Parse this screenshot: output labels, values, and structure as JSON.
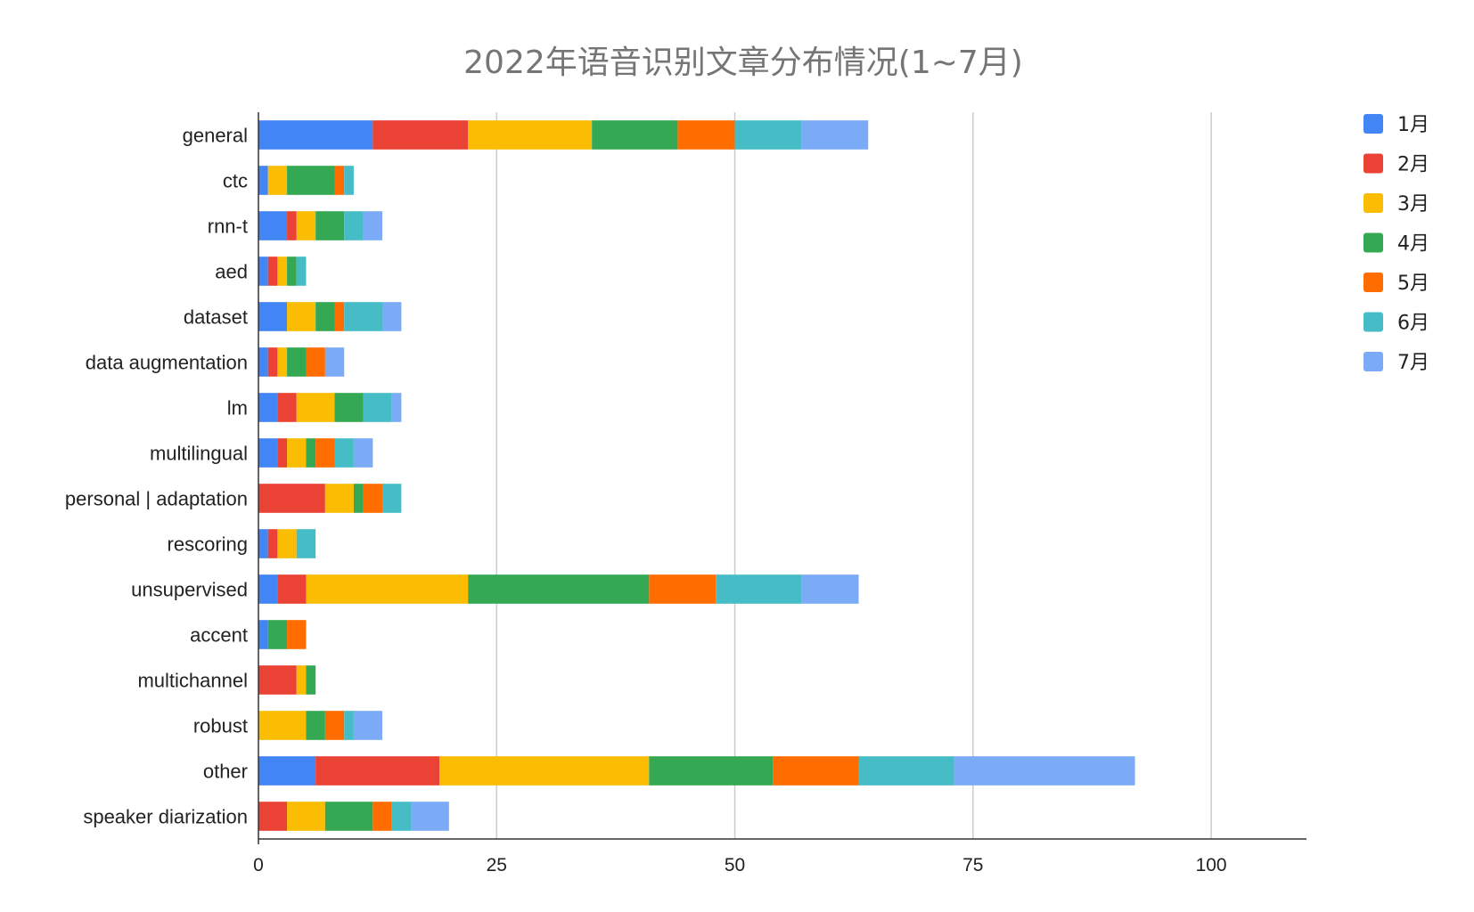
{
  "chart_data": {
    "type": "bar",
    "orientation": "horizontal",
    "stacked": true,
    "title": "2022年语音识别文章分布情况(1~7月)",
    "xlim": [
      0,
      110
    ],
    "xticks": [
      0,
      25,
      50,
      75,
      100
    ],
    "xtick_labels": [
      "0",
      "25",
      "50",
      "75",
      "100"
    ],
    "grid": true,
    "legend_position": "right",
    "categories": [
      "general",
      "ctc",
      "rnn-t",
      "aed",
      "dataset",
      "data augmentation",
      "lm",
      "multilingual",
      "personal | adaptation",
      "rescoring",
      "unsupervised",
      "accent",
      "multichannel",
      "robust",
      "other",
      "speaker diarization"
    ],
    "series": [
      {
        "name": "1月",
        "color": "#4285F4",
        "values": [
          12,
          1,
          3,
          1,
          3,
          1,
          2,
          2,
          0,
          1,
          2,
          1,
          0,
          0,
          6,
          0
        ]
      },
      {
        "name": "2月",
        "color": "#EA4335",
        "values": [
          10,
          0,
          1,
          1,
          0,
          1,
          2,
          1,
          7,
          1,
          3,
          0,
          4,
          0,
          13,
          3
        ]
      },
      {
        "name": "3月",
        "color": "#FBBC04",
        "values": [
          13,
          2,
          2,
          1,
          3,
          1,
          4,
          2,
          3,
          2,
          17,
          0,
          1,
          5,
          22,
          4
        ]
      },
      {
        "name": "4月",
        "color": "#34A853",
        "values": [
          9,
          5,
          3,
          1,
          2,
          2,
          3,
          1,
          1,
          0,
          19,
          2,
          1,
          2,
          13,
          5
        ]
      },
      {
        "name": "5月",
        "color": "#FF6D01",
        "values": [
          6,
          1,
          0,
          0,
          1,
          2,
          0,
          2,
          2,
          0,
          7,
          2,
          0,
          2,
          9,
          2
        ]
      },
      {
        "name": "6月",
        "color": "#46BDC6",
        "values": [
          7,
          1,
          2,
          1,
          4,
          0,
          3,
          2,
          2,
          2,
          9,
          0,
          0,
          1,
          10,
          2
        ]
      },
      {
        "name": "7月",
        "color": "#7BAAF7",
        "values": [
          7,
          0,
          2,
          0,
          2,
          2,
          1,
          2,
          0,
          0,
          6,
          0,
          0,
          3,
          19,
          4
        ]
      }
    ]
  }
}
